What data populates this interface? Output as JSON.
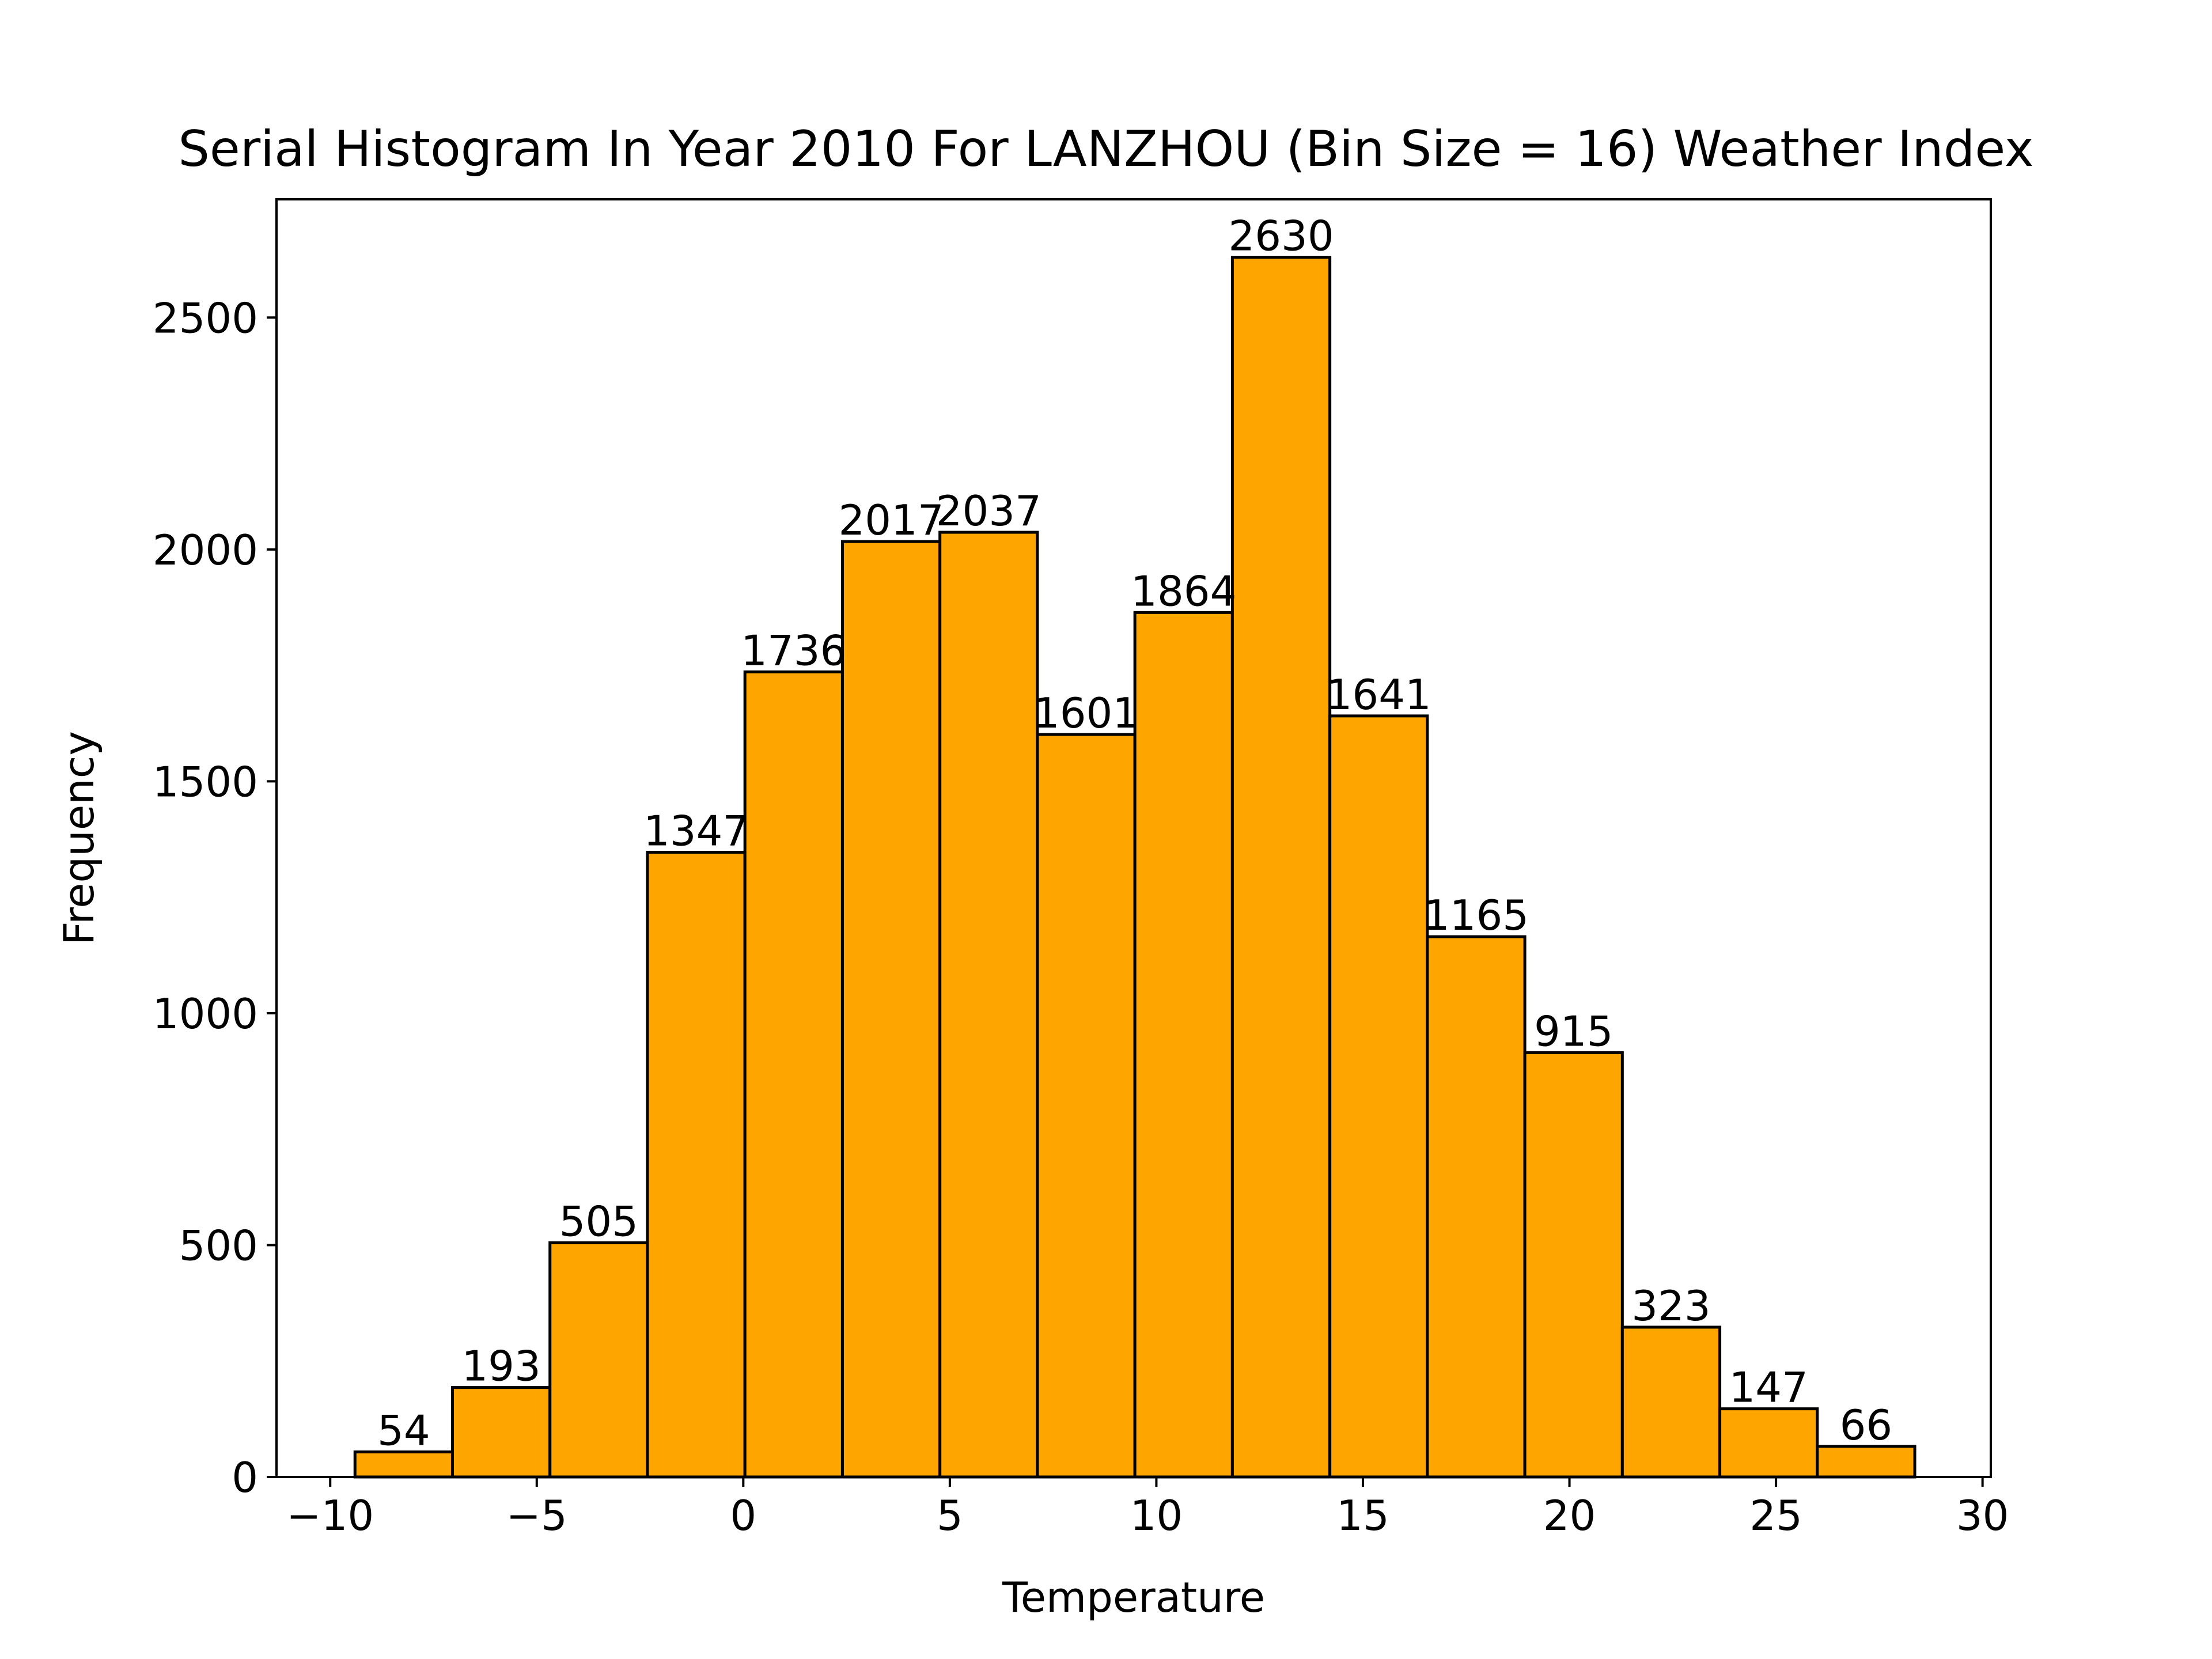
{
  "chart_data": {
    "type": "bar",
    "title": "Serial Histogram In Year 2010 For LANZHOU (Bin Size = 16) Weather Index",
    "xlabel": "Temperature",
    "ylabel": "Frequency",
    "bin_edges": [
      -9.4,
      -7.04,
      -4.68,
      -2.32,
      0.04,
      2.4,
      4.76,
      7.12,
      9.48,
      11.84,
      14.2,
      16.56,
      18.92,
      21.28,
      23.64,
      26.0,
      28.36
    ],
    "values": [
      54,
      193,
      505,
      1347,
      1736,
      2017,
      2037,
      1601,
      1864,
      2630,
      1641,
      1165,
      915,
      323,
      147,
      66
    ],
    "data_labels": [
      "54",
      "193",
      "505",
      "1347",
      "1736",
      "2017",
      "2037",
      "1601",
      "1864",
      "2630",
      "1641",
      "1165",
      "915",
      "323",
      "147",
      "66"
    ],
    "xlim": [
      -11.3,
      30.2
    ],
    "ylim": [
      0,
      2755
    ],
    "x_ticks": [
      -10,
      -5,
      0,
      5,
      10,
      15,
      20,
      25,
      30
    ],
    "x_tick_labels": [
      "−10",
      "−5",
      "0",
      "5",
      "10",
      "15",
      "20",
      "25",
      "30"
    ],
    "y_ticks": [
      0,
      500,
      1000,
      1500,
      2000,
      2500
    ],
    "y_tick_labels": [
      "0",
      "500",
      "1000",
      "1500",
      "2000",
      "2500"
    ],
    "grid": false,
    "bar_color": "#ffa500",
    "edge_color": "#000000"
  }
}
